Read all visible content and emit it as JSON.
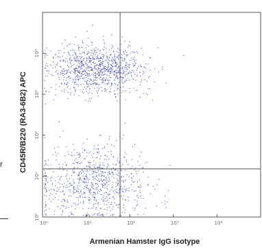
{
  "chart_data": {
    "type": "scatter",
    "xlabel": "Armenian Hamster IgG isotype",
    "ylabel": "CD45R/B220 (RA3-6B2) APC",
    "x_scale": "log",
    "y_scale": "log",
    "xlim": [
      1,
      100000
    ],
    "ylim": [
      1,
      100000
    ],
    "x_ticks": [
      "10⁰",
      "10¹",
      "10²",
      "10³",
      "10⁴"
    ],
    "y_ticks": [
      "10⁰",
      "10¹",
      "10²",
      "10³",
      "10⁴"
    ],
    "quadrant_gates": {
      "x": 60,
      "y": 15
    },
    "populations": [
      {
        "name": "upper-left",
        "center": [
          18,
          4000
        ],
        "spread": [
          0.35,
          0.18
        ],
        "weight": 0.55
      },
      {
        "name": "lower-left",
        "center": [
          14,
          7
        ],
        "spread": [
          0.38,
          0.28
        ],
        "weight": 0.45
      }
    ],
    "grid": false,
    "dot_color": "#2b35b5"
  },
  "edge": {
    "left_char": "r"
  }
}
